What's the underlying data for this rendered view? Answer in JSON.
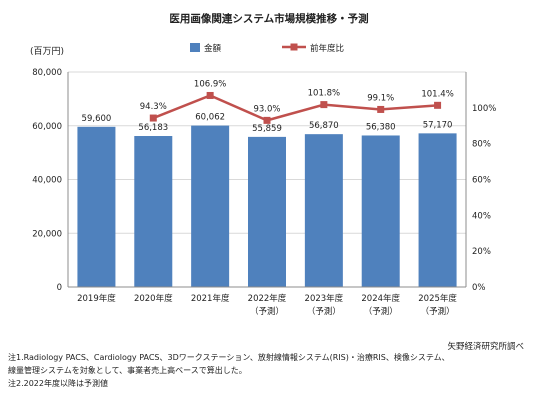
{
  "chart_data": {
    "type": "bar",
    "title": "医用画像関連システム市場規模推移・予測",
    "ylabel": "(百万円)",
    "categories": [
      [
        "2019年度"
      ],
      [
        "2020年度"
      ],
      [
        "2021年度"
      ],
      [
        "2022年度",
        "（予測）"
      ],
      [
        "2023年度",
        "（予測）"
      ],
      [
        "2024年度",
        "（予測）"
      ],
      [
        "2025年度",
        "（予測）"
      ]
    ],
    "ylim": [
      0,
      80000
    ],
    "yticks": [
      "0",
      "20,000",
      "40,000",
      "60,000",
      "80,000"
    ],
    "y2lim": [
      0,
      120
    ],
    "y2ticks": [
      "0%",
      "20%",
      "40%",
      "60%",
      "80%",
      "100%"
    ],
    "legend_position": "top-center",
    "series": [
      {
        "name": "金額",
        "kind": "bar",
        "color": "#4f81bd",
        "values": [
          59600,
          56183,
          60062,
          55859,
          56870,
          56380,
          57170
        ],
        "labels": [
          "59,600",
          "56,183",
          "60,062",
          "55,859",
          "56,870",
          "56,380",
          "57,170"
        ]
      },
      {
        "name": "前年度比",
        "kind": "line",
        "axis": "right",
        "color": "#c0504d",
        "values": [
          null,
          94.3,
          106.9,
          93.0,
          101.8,
          99.1,
          101.4
        ],
        "labels": [
          null,
          "94.3%",
          "106.9%",
          "93.0%",
          "101.8%",
          "99.1%",
          "101.4%"
        ]
      }
    ]
  },
  "source": "矢野経済研究所調べ",
  "notes": [
    "注1.Radiology PACS、Cardiology PACS、3Dワークステーション、放射線情報システム(RIS)・治療RIS、検像システム、",
    "線量管理システムを対象として、事業者売上高ベースで算出した。",
    "注2.2022年度以降は予測値"
  ]
}
